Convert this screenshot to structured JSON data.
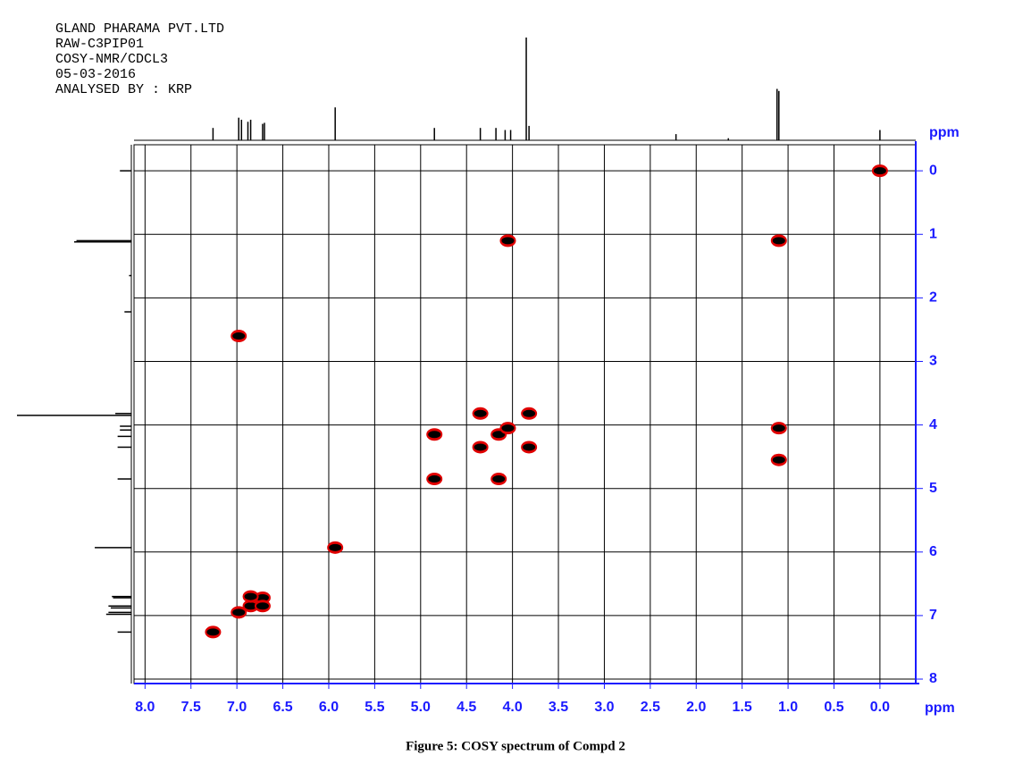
{
  "header": [
    "GLAND PHARAMA PVT.LTD",
    "RAW-C3PIP01",
    "COSY-NMR/CDCL3",
    "05-03-2016",
    "ANALYSED BY : KRP"
  ],
  "caption": "Figure 5: COSY spectrum of Compd 2",
  "chart_data": {
    "type": "scatter",
    "x_label": "ppm",
    "y_label": "ppm",
    "xlim": [
      8.12,
      -0.39
    ],
    "ylim": [
      -0.41,
      8.07
    ],
    "xticks": [
      {
        "value": 8,
        "label": "8.0"
      },
      7.5,
      {
        "value": 7,
        "label": "7.0"
      },
      6.5,
      {
        "value": 6,
        "label": "6.0"
      },
      5.5,
      {
        "value": 5,
        "label": "5.0"
      },
      4.5,
      {
        "value": 4,
        "label": "4.0"
      },
      3.5,
      {
        "value": 3,
        "label": "3.0"
      },
      2.5,
      {
        "value": 2,
        "label": "2.0"
      },
      1.5,
      {
        "value": 1,
        "label": "1.0"
      },
      0.5,
      {
        "value": 0,
        "label": "0.0"
      }
    ],
    "yticks": [
      0,
      1,
      2,
      3,
      4,
      5,
      6,
      7,
      8
    ],
    "grid": true,
    "axis_color": "#1a1aff",
    "series": [
      {
        "color": "#e00000",
        "x": [
          4.05,
          1.1,
          1.1,
          4.85,
          4.85,
          4.15,
          4.35,
          3.82,
          4.35,
          3.82,
          4.15,
          4.05,
          6.85,
          6.72,
          6.98,
          6.85,
          6.72,
          5.93,
          7.26,
          1.1,
          6.98,
          0.0
        ],
        "values": [
          1.1,
          1.1,
          4.05,
          4.15,
          4.85,
          4.85,
          3.82,
          3.82,
          4.35,
          4.35,
          4.15,
          4.05,
          6.85,
          6.72,
          6.95,
          6.7,
          6.85,
          5.93,
          7.26,
          4.55,
          2.6,
          0.0
        ]
      }
    ],
    "projection": {
      "color": "#000000",
      "x": [
        7.26,
        6.98,
        6.95,
        6.88,
        6.85,
        6.72,
        6.7,
        5.93,
        4.85,
        4.35,
        4.18,
        4.08,
        4.02,
        3.85,
        3.82,
        2.22,
        1.65,
        1.12,
        1.1,
        0.0
      ],
      "values": [
        12,
        22,
        20,
        18,
        20,
        16,
        17,
        32,
        12,
        12,
        12,
        10,
        10,
        100,
        14,
        6,
        2,
        50,
        48,
        10
      ]
    }
  }
}
